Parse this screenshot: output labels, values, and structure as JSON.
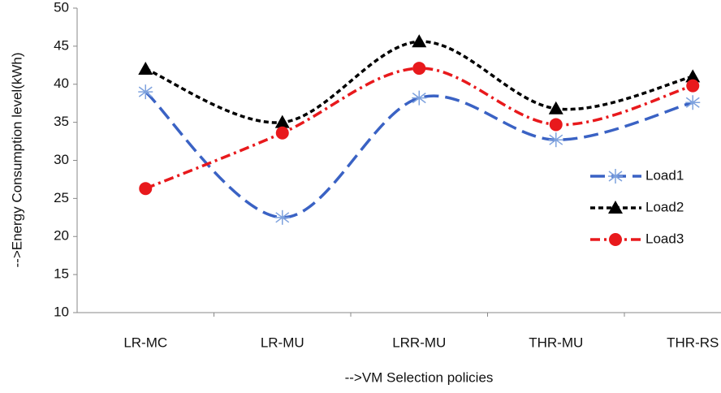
{
  "chart_data": {
    "type": "line",
    "x_label": "-->VM Selection policies",
    "y_label": "-->Energy Consumption level(kWh)",
    "categories": [
      "LR-MC",
      "LR-MU",
      "LRR-MU",
      "THR-MU",
      "THR-RS"
    ],
    "series": [
      {
        "name": "Load1",
        "color": "#3a62c4",
        "marker": "star",
        "dash": "18,8",
        "values": [
          39,
          22.5,
          38.2,
          32.7,
          37.6
        ]
      },
      {
        "name": "Load2",
        "color": "#000000",
        "marker": "triangle",
        "dash": "6,4",
        "values": [
          42,
          35,
          45.6,
          36.8,
          41
        ]
      },
      {
        "name": "Load3",
        "color": "#e8191c",
        "marker": "circle",
        "dash": "12,5,3,5",
        "values": [
          26.3,
          33.6,
          42.1,
          34.7,
          39.8
        ]
      }
    ],
    "ylim": [
      10,
      50
    ],
    "yticks": [
      10,
      15,
      20,
      25,
      30,
      35,
      40,
      45,
      50
    ],
    "smooth": true,
    "legend": "right"
  }
}
